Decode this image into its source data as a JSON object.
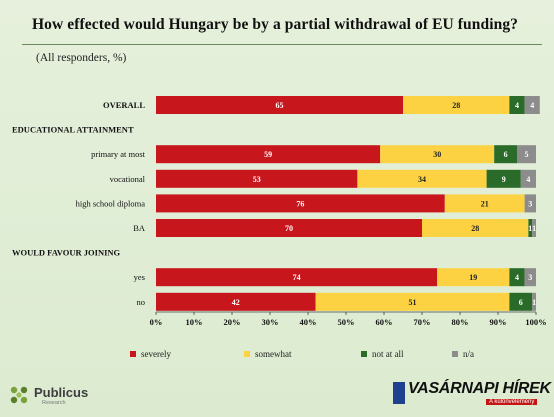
{
  "chart_data": {
    "type": "bar",
    "orientation": "horizontal",
    "stacked": true,
    "title": "How effected would Hungary be by a partial withdrawal of EU funding?",
    "subtitle": "(All responders, %)",
    "rows": [
      {
        "label": "OVERALL",
        "kind": "group",
        "values": [
          65,
          28,
          4,
          4
        ],
        "labels": [
          "65",
          "28",
          "4",
          "4"
        ]
      },
      {
        "label": "EDUCATIONAL ATTAINMENT",
        "kind": "header"
      },
      {
        "label": "primary at most",
        "kind": "sub",
        "values": [
          59,
          30,
          6,
          5
        ],
        "labels": [
          "59",
          "30",
          "6",
          "5"
        ]
      },
      {
        "label": "vocational",
        "kind": "sub",
        "values": [
          53,
          34,
          9,
          4
        ],
        "labels": [
          "53",
          "34",
          "9",
          "4"
        ]
      },
      {
        "label": "high school diploma",
        "kind": "sub",
        "values": [
          76,
          21,
          0,
          3
        ],
        "labels": [
          "76",
          "21",
          "",
          "3"
        ]
      },
      {
        "label": "BA",
        "kind": "sub",
        "values": [
          70,
          28,
          1,
          1
        ],
        "labels": [
          "70",
          "28",
          "1",
          "1"
        ]
      },
      {
        "label": "WOULD FAVOUR JOINING",
        "kind": "header"
      },
      {
        "label": "yes",
        "kind": "sub",
        "values": [
          74,
          19,
          4,
          3
        ],
        "labels": [
          "74",
          "19",
          "4",
          "3"
        ]
      },
      {
        "label": "no",
        "kind": "sub",
        "values": [
          42,
          51,
          6,
          1
        ],
        "labels": [
          "42",
          "51",
          "6",
          "1"
        ]
      }
    ],
    "series": [
      {
        "name": "severely",
        "color": "#c8161d"
      },
      {
        "name": "somewhat",
        "color": "#fcd243"
      },
      {
        "name": "not at all",
        "color": "#2a6b2a"
      },
      {
        "name": "n/a",
        "color": "#8c8c8c"
      }
    ],
    "x_ticks": [
      "0%",
      "10%",
      "20%",
      "30%",
      "40%",
      "50%",
      "60%",
      "70%",
      "80%",
      "90%",
      "100%"
    ],
    "xlim": [
      0,
      100
    ],
    "grid": false,
    "legend_position": "bottom"
  },
  "logos": {
    "left": {
      "name": "Publicus",
      "tagline": "Research"
    },
    "right": {
      "name": "VASÁRNAPI HÍREK",
      "tagline": "A különvélemény"
    }
  }
}
